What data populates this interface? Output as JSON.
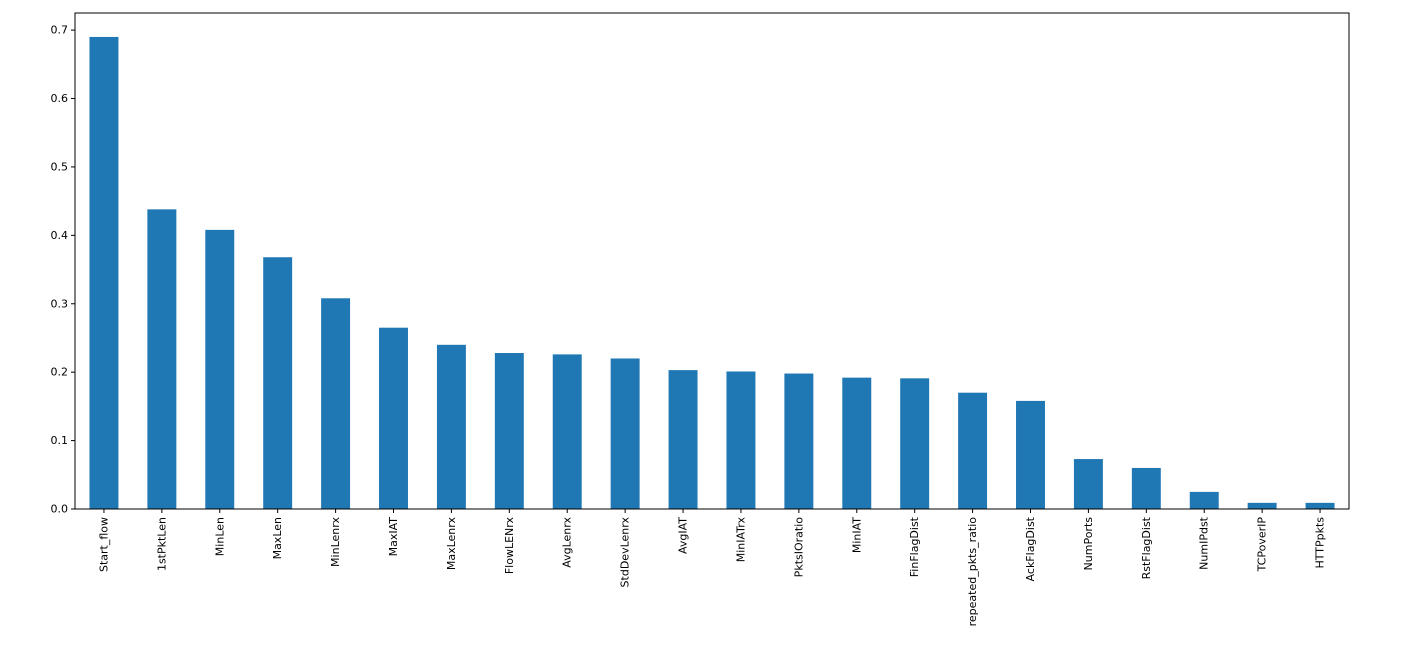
{
  "chart_data": {
    "type": "bar",
    "title": "",
    "xlabel": "",
    "ylabel": "",
    "ylim": [
      0,
      0.725
    ],
    "yticks": [
      0.0,
      0.1,
      0.2,
      0.3,
      0.4,
      0.5,
      0.6,
      0.7
    ],
    "ytick_labels": [
      "0.0",
      "0.1",
      "0.2",
      "0.3",
      "0.4",
      "0.5",
      "0.6",
      "0.7"
    ],
    "grid": false,
    "bar_color": "#1f77b4",
    "categories": [
      "Start_flow",
      "1stPktLen",
      "MinLen",
      "MaxLen",
      "MinLenrx",
      "MaxIAT",
      "MaxLenrx",
      "FlowLENrx",
      "AvgLenrx",
      "StdDevLenrx",
      "AvgIAT",
      "MinIATrx",
      "PktsIOratio",
      "MinIAT",
      "FinFlagDist",
      "repeated_pkts_ratio",
      "AckFlagDist",
      "NumPorts",
      "RstFlagDist",
      "NumIPdst",
      "TCPoverIP",
      "HTTPpkts"
    ],
    "values": [
      0.69,
      0.438,
      0.408,
      0.368,
      0.308,
      0.265,
      0.24,
      0.228,
      0.226,
      0.22,
      0.203,
      0.201,
      0.198,
      0.192,
      0.191,
      0.17,
      0.158,
      0.073,
      0.06,
      0.025,
      0.009,
      0.009
    ]
  }
}
